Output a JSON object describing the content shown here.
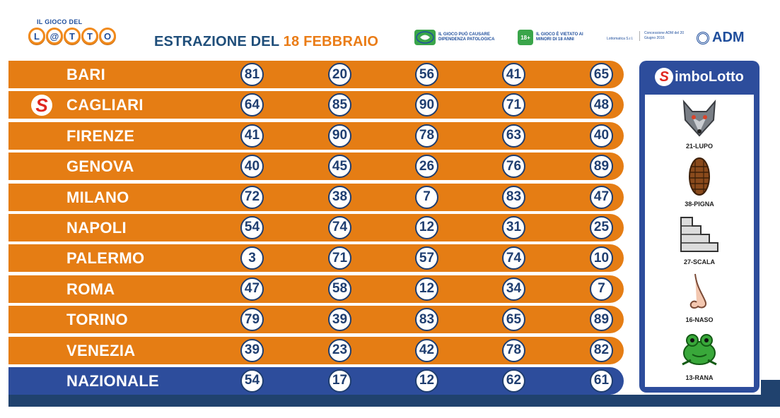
{
  "header": {
    "logo_small": "IL GIOCO DEL",
    "logo_letters": [
      "L",
      "@",
      "T",
      "T",
      "O"
    ],
    "headline_prefix": "ESTRAZIONE DEL",
    "headline_date": "18 FEBBRAIO",
    "notice_1_icon": "gioco-responsabile-icon",
    "notice_1_text": "IL GIOCO PUÒ CAUSARE DIPENDENZA PATOLOGICA",
    "notice_2_badge": "18+",
    "notice_2_text": "IL GIOCO È VIETATO AI MINORI DI 18 ANNI",
    "company": "Lottomatica S.r.l.",
    "concession": "Concessione ADM del 20 Giugno 2016",
    "adm": "ADM"
  },
  "draws": [
    {
      "city": "BARI",
      "numbers": [
        "81",
        "20",
        "56",
        "41",
        "65"
      ],
      "symbol_marker": false
    },
    {
      "city": "CAGLIARI",
      "numbers": [
        "64",
        "85",
        "90",
        "71",
        "48"
      ],
      "symbol_marker": true
    },
    {
      "city": "FIRENZE",
      "numbers": [
        "41",
        "90",
        "78",
        "63",
        "40"
      ],
      "symbol_marker": false
    },
    {
      "city": "GENOVA",
      "numbers": [
        "40",
        "45",
        "26",
        "76",
        "89"
      ],
      "symbol_marker": false
    },
    {
      "city": "MILANO",
      "numbers": [
        "72",
        "38",
        "7",
        "83",
        "47"
      ],
      "symbol_marker": false
    },
    {
      "city": "NAPOLI",
      "numbers": [
        "54",
        "74",
        "12",
        "31",
        "25"
      ],
      "symbol_marker": false
    },
    {
      "city": "PALERMO",
      "numbers": [
        "3",
        "71",
        "57",
        "74",
        "10"
      ],
      "symbol_marker": false
    },
    {
      "city": "ROMA",
      "numbers": [
        "47",
        "58",
        "12",
        "34",
        "7"
      ],
      "symbol_marker": false
    },
    {
      "city": "TORINO",
      "numbers": [
        "79",
        "39",
        "83",
        "65",
        "89"
      ],
      "symbol_marker": false
    },
    {
      "city": "VENEZIA",
      "numbers": [
        "39",
        "23",
        "42",
        "78",
        "82"
      ],
      "symbol_marker": false
    },
    {
      "city": "NAZIONALE",
      "numbers": [
        "54",
        "17",
        "12",
        "62",
        "61"
      ],
      "symbol_marker": false
    }
  ],
  "symbol_marker_glyph": "S",
  "simbolotto": {
    "s_glyph": "S",
    "title": "imboLotto",
    "symbols": [
      {
        "label": "21-LUPO",
        "icon": "wolf-icon"
      },
      {
        "label": "38-PIGNA",
        "icon": "pinecone-icon"
      },
      {
        "label": "27-SCALA",
        "icon": "stairs-icon"
      },
      {
        "label": "16-NASO",
        "icon": "nose-icon"
      },
      {
        "label": "13-RANA",
        "icon": "frog-icon"
      }
    ]
  },
  "colors": {
    "orange_row": "#e57d14",
    "nazionale_row": "#2d4d9c",
    "number_text": "#1f3e70",
    "headline": "#1f4e7a",
    "accent_date": "#ea7c16",
    "symbol_red": "#e0261f"
  }
}
